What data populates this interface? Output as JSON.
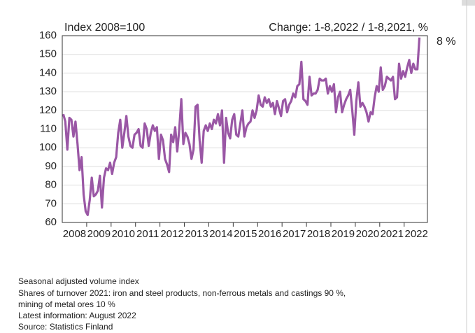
{
  "chart_data": {
    "type": "line",
    "subtitle_left": "Index 2008=100",
    "subtitle_right": "Change: 1-8,2022 / 1-8,2021, %",
    "annotation": "8 %",
    "notes": [
      "Seasonal adjusted volume index",
      "Shares of turnover 2021: iron and steel products, non-ferrous metals and castings 90 %,",
      "mining of metal ores 10 %",
      "Latest information: August 2022",
      "Source: Statistics Finland"
    ],
    "categories": [
      "2008",
      null,
      null,
      null,
      null,
      null,
      null,
      null,
      null,
      null,
      null,
      null,
      "2009",
      null,
      null,
      null,
      null,
      null,
      null,
      null,
      null,
      null,
      null,
      null,
      "2010",
      null,
      null,
      null,
      null,
      null,
      null,
      null,
      null,
      null,
      null,
      null,
      "2011",
      null,
      null,
      null,
      null,
      null,
      null,
      null,
      null,
      null,
      null,
      null,
      "2012",
      null,
      null,
      null,
      null,
      null,
      null,
      null,
      null,
      null,
      null,
      null,
      "2013",
      null,
      null,
      null,
      null,
      null,
      null,
      null,
      null,
      null,
      null,
      null,
      "2014",
      null,
      null,
      null,
      null,
      null,
      null,
      null,
      null,
      null,
      null,
      null,
      "2015",
      null,
      null,
      null,
      null,
      null,
      null,
      null,
      null,
      null,
      null,
      null,
      "2016",
      null,
      null,
      null,
      null,
      null,
      null,
      null,
      null,
      null,
      null,
      null,
      "2017",
      null,
      null,
      null,
      null,
      null,
      null,
      null,
      null,
      null,
      null,
      null,
      "2018",
      null,
      null,
      null,
      null,
      null,
      null,
      null,
      null,
      null,
      null,
      null,
      "2019",
      null,
      null,
      null,
      null,
      null,
      null,
      null,
      null,
      null,
      null,
      null,
      "2020",
      null,
      null,
      null,
      null,
      null,
      null,
      null,
      null,
      null,
      null,
      null,
      "2021",
      null,
      null,
      null,
      null,
      null,
      null,
      null,
      null,
      null,
      null,
      null,
      "2022",
      null,
      null,
      null,
      null,
      null,
      null,
      null
    ],
    "series": [
      {
        "color": "#9a57a5",
        "values": [
          118,
          114,
          99,
          116,
          115,
          106,
          114,
          102,
          88,
          95,
          75,
          66,
          64,
          72,
          84,
          74,
          75,
          77,
          85,
          68,
          84,
          89,
          88,
          92,
          86,
          92,
          95,
          108,
          115,
          100,
          108,
          117,
          106,
          101,
          100,
          107,
          108,
          110,
          101,
          100,
          113,
          110,
          101,
          108,
          112,
          109,
          111,
          94,
          107,
          104,
          94,
          91,
          87,
          107,
          103,
          111,
          98,
          110,
          126,
          102,
          108,
          106,
          102,
          94,
          99,
          122,
          123,
          104,
          92,
          109,
          112,
          109,
          113,
          110,
          115,
          113,
          118,
          112,
          120,
          92,
          116,
          108,
          105,
          115,
          118,
          107,
          106,
          113,
          120,
          106,
          111,
          113,
          114,
          120,
          116,
          120,
          128,
          123,
          122,
          127,
          124,
          126,
          122,
          124,
          118,
          125,
          121,
          117,
          125,
          126,
          119,
          123,
          125,
          129,
          127,
          133,
          134,
          146,
          126,
          125,
          123,
          138,
          128,
          129,
          129,
          131,
          137,
          136,
          136,
          137,
          129,
          133,
          130,
          134,
          119,
          127,
          130,
          119,
          123,
          126,
          128,
          131,
          120,
          107,
          125,
          135,
          122,
          124,
          122,
          119,
          114,
          119,
          118,
          127,
          133,
          130,
          143,
          131,
          133,
          138,
          137,
          136,
          138,
          126,
          127,
          145,
          137,
          141,
          138,
          143,
          147,
          140,
          145,
          142,
          142,
          159
        ]
      }
    ],
    "ylim": [
      60,
      160
    ],
    "yticks": [
      60,
      70,
      80,
      90,
      100,
      110,
      120,
      130,
      140,
      150,
      160
    ],
    "grid": true
  }
}
